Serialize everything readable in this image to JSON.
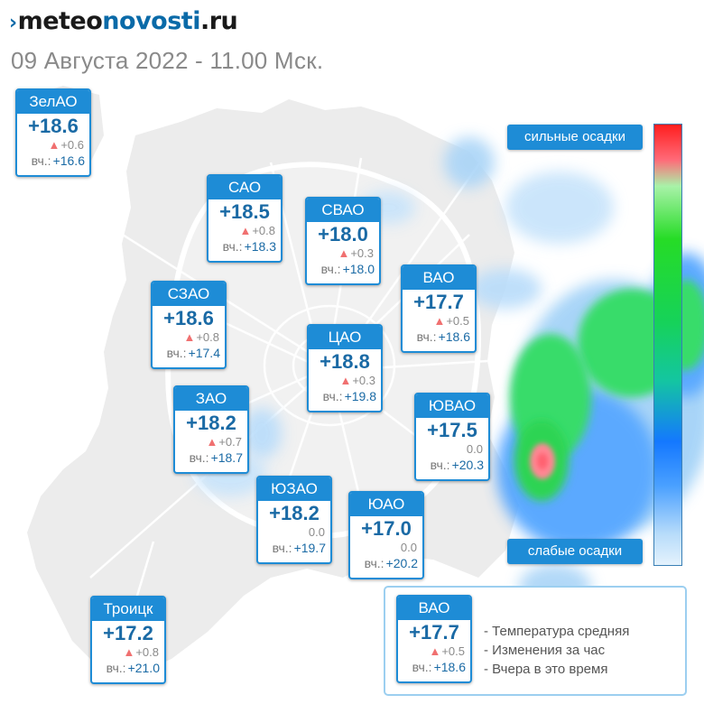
{
  "brand": {
    "chevron": "›",
    "meteo": "meteo",
    "novosti": "novosti",
    "ru": ".ru"
  },
  "subtitle": "09 Августа 2022 - 11.00 Мск.",
  "scale": {
    "top_label": "сильные осадки",
    "bottom_label": "слабые осадки"
  },
  "yesterday_prefix": "вч.:",
  "arrow_glyph": "▲",
  "districts": [
    {
      "key": "zelao",
      "name": "ЗелАО",
      "temp": "+18.6",
      "delta": "+0.6",
      "rising": true,
      "yesterday": "+16.6"
    },
    {
      "key": "sao",
      "name": "САО",
      "temp": "+18.5",
      "delta": "+0.8",
      "rising": true,
      "yesterday": "+18.3"
    },
    {
      "key": "svao",
      "name": "СВАО",
      "temp": "+18.0",
      "delta": "+0.3",
      "rising": true,
      "yesterday": "+18.0"
    },
    {
      "key": "vao",
      "name": "ВАО",
      "temp": "+17.7",
      "delta": "+0.5",
      "rising": true,
      "yesterday": "+18.6"
    },
    {
      "key": "szao",
      "name": "СЗАО",
      "temp": "+18.6",
      "delta": "+0.8",
      "rising": true,
      "yesterday": "+17.4"
    },
    {
      "key": "cao",
      "name": "ЦАО",
      "temp": "+18.8",
      "delta": "+0.3",
      "rising": true,
      "yesterday": "+19.8"
    },
    {
      "key": "zao",
      "name": "ЗАО",
      "temp": "+18.2",
      "delta": "+0.7",
      "rising": true,
      "yesterday": "+18.7"
    },
    {
      "key": "yuvao",
      "name": "ЮВАО",
      "temp": "+17.5",
      "delta": "0.0",
      "rising": false,
      "yesterday": "+20.3"
    },
    {
      "key": "yuzao",
      "name": "ЮЗАО",
      "temp": "+18.2",
      "delta": "0.0",
      "rising": false,
      "yesterday": "+19.7"
    },
    {
      "key": "yuao",
      "name": "ЮАО",
      "temp": "+17.0",
      "delta": "0.0",
      "rising": false,
      "yesterday": "+20.2"
    },
    {
      "key": "troitsk",
      "name": "Троицк",
      "temp": "+17.2",
      "delta": "+0.8",
      "rising": true,
      "yesterday": "+21.0"
    }
  ],
  "legend": {
    "sample": {
      "name": "ВАО",
      "temp": "+17.7",
      "delta": "+0.5",
      "rising": true,
      "yesterday": "+18.6"
    },
    "items": [
      "- Температура средняя",
      "- Изменения за час",
      "- Вчера в это время"
    ]
  },
  "colors": {
    "accent": "#1e8cd6",
    "temp_text": "#1a6aa5",
    "rise_arrow": "#f07070",
    "map_fill": "#ececec",
    "road": "#ffffff"
  }
}
